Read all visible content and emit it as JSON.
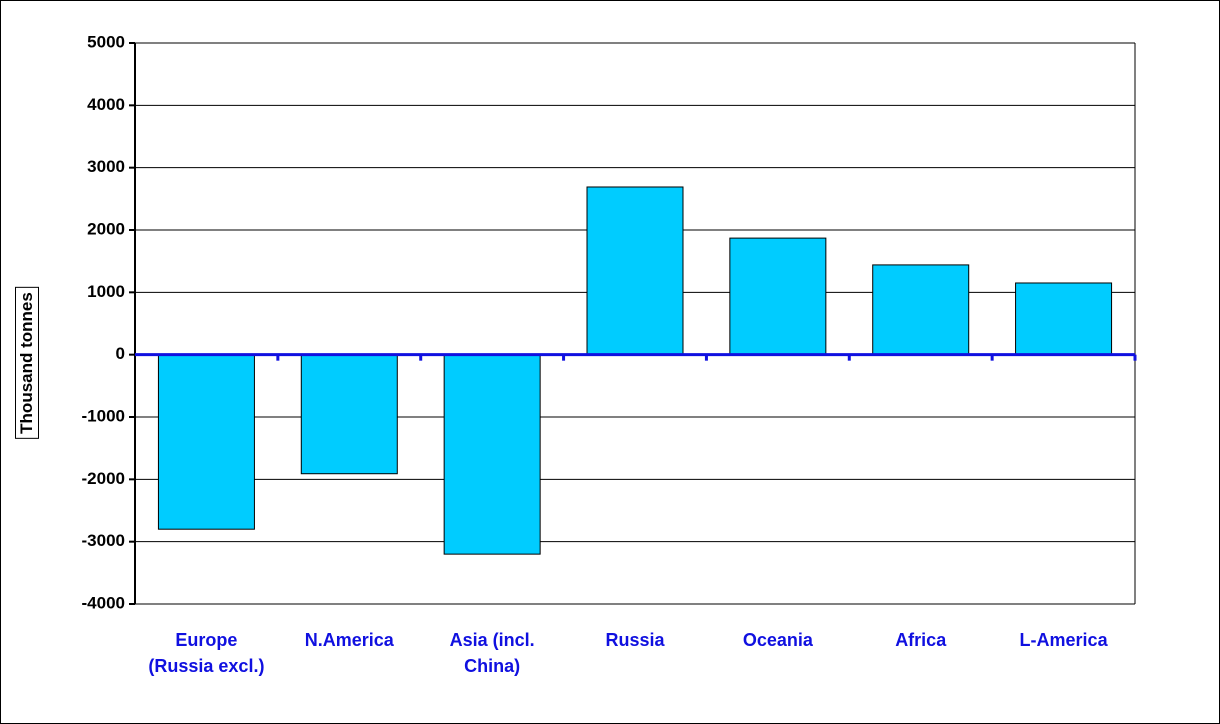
{
  "chart_data": {
    "type": "bar",
    "y_label": "Thousand tonnes",
    "categories": [
      "Europe (Russia excl.)",
      "N.America",
      "Asia (incl. China)",
      "Russia",
      "Oceania",
      "Africa",
      "L-America"
    ],
    "values": [
      -2800,
      -1910,
      -3200,
      2690,
      1870,
      1440,
      1150
    ],
    "color": "#00ccff",
    "ylim": [
      -4000,
      5000
    ],
    "yticks": [
      -4000,
      -3000,
      -2000,
      -1000,
      0,
      1000,
      2000,
      3000,
      4000,
      5000
    ],
    "grid": true
  }
}
